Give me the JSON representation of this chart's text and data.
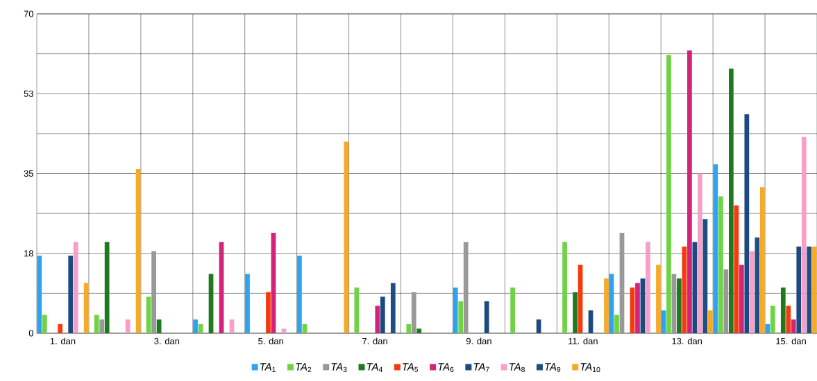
{
  "chart_data": {
    "type": "bar",
    "categories": [
      "1. dan",
      null,
      "3. dan",
      null,
      "5. dan",
      null,
      "7. dan",
      null,
      "9. dan",
      null,
      "11. dan",
      null,
      "13. dan",
      null,
      "15. dan"
    ],
    "series": [
      {
        "name": "*TA*$_{1}$",
        "color": "#2ea3f2",
        "values": [
          17,
          null,
          null,
          3,
          13,
          17,
          null,
          null,
          10,
          null,
          null,
          13,
          5,
          37,
          2
        ]
      },
      {
        "name": "*TA*$_{2}$",
        "color": "#6fd345",
        "values": [
          4,
          4,
          8,
          2,
          null,
          2,
          10,
          2,
          7,
          10,
          20,
          4,
          61,
          30,
          6
        ]
      },
      {
        "name": "*TA*$_{3}$",
        "color": "#999999",
        "values": [
          null,
          3,
          18,
          null,
          null,
          null,
          null,
          9,
          20,
          null,
          null,
          22,
          13,
          14,
          null
        ]
      },
      {
        "name": "*TA*$_{4}$",
        "color": "#1f7a1f",
        "values": [
          null,
          20,
          3,
          13,
          null,
          null,
          null,
          1,
          null,
          null,
          9,
          null,
          12,
          58,
          10
        ]
      },
      {
        "name": "*TA*$_{5}$",
        "color": "#f43b0f",
        "values": [
          2,
          null,
          null,
          null,
          9,
          null,
          null,
          null,
          null,
          null,
          15,
          10,
          19,
          28,
          6
        ]
      },
      {
        "name": "*TA*$_{6}$",
        "color": "#d4237a",
        "values": [
          null,
          null,
          null,
          20,
          22,
          null,
          6,
          null,
          null,
          null,
          null,
          11,
          62,
          15,
          3
        ]
      },
      {
        "name": "*TA*$_{7}$",
        "color": "#1c4a80",
        "values": [
          17,
          null,
          null,
          null,
          null,
          null,
          8,
          null,
          7,
          3,
          5,
          12,
          20,
          48,
          19
        ]
      },
      {
        "name": "*TA*$_{8}$",
        "color": "#f79fc9",
        "values": [
          20,
          3,
          null,
          3,
          1,
          null,
          null,
          null,
          null,
          null,
          null,
          20,
          35,
          18,
          43
        ]
      },
      {
        "name": "*TA*$_{9}$",
        "color": "#1f4e86",
        "values": [
          null,
          null,
          null,
          null,
          null,
          null,
          11,
          null,
          null,
          null,
          null,
          null,
          25,
          21,
          19
        ]
      },
      {
        "name": "*TA*$_{10}$",
        "color": "#f7a928",
        "values": [
          11,
          36,
          null,
          null,
          null,
          42,
          null,
          null,
          null,
          null,
          12,
          15,
          5,
          32,
          19
        ]
      }
    ],
    "ylim": [
      0,
      70
    ],
    "yticks": [
      0,
      {
        "value": 8.75,
        "label": null
      },
      {
        "value": 17.5,
        "label": "18"
      },
      {
        "value": 26.25,
        "label": null
      },
      35,
      {
        "value": 43.75,
        "label": null
      },
      {
        "value": 52.5,
        "label": "53"
      },
      {
        "value": 61.25,
        "label": null
      },
      70
    ],
    "grid": true,
    "legend": "bottom"
  }
}
